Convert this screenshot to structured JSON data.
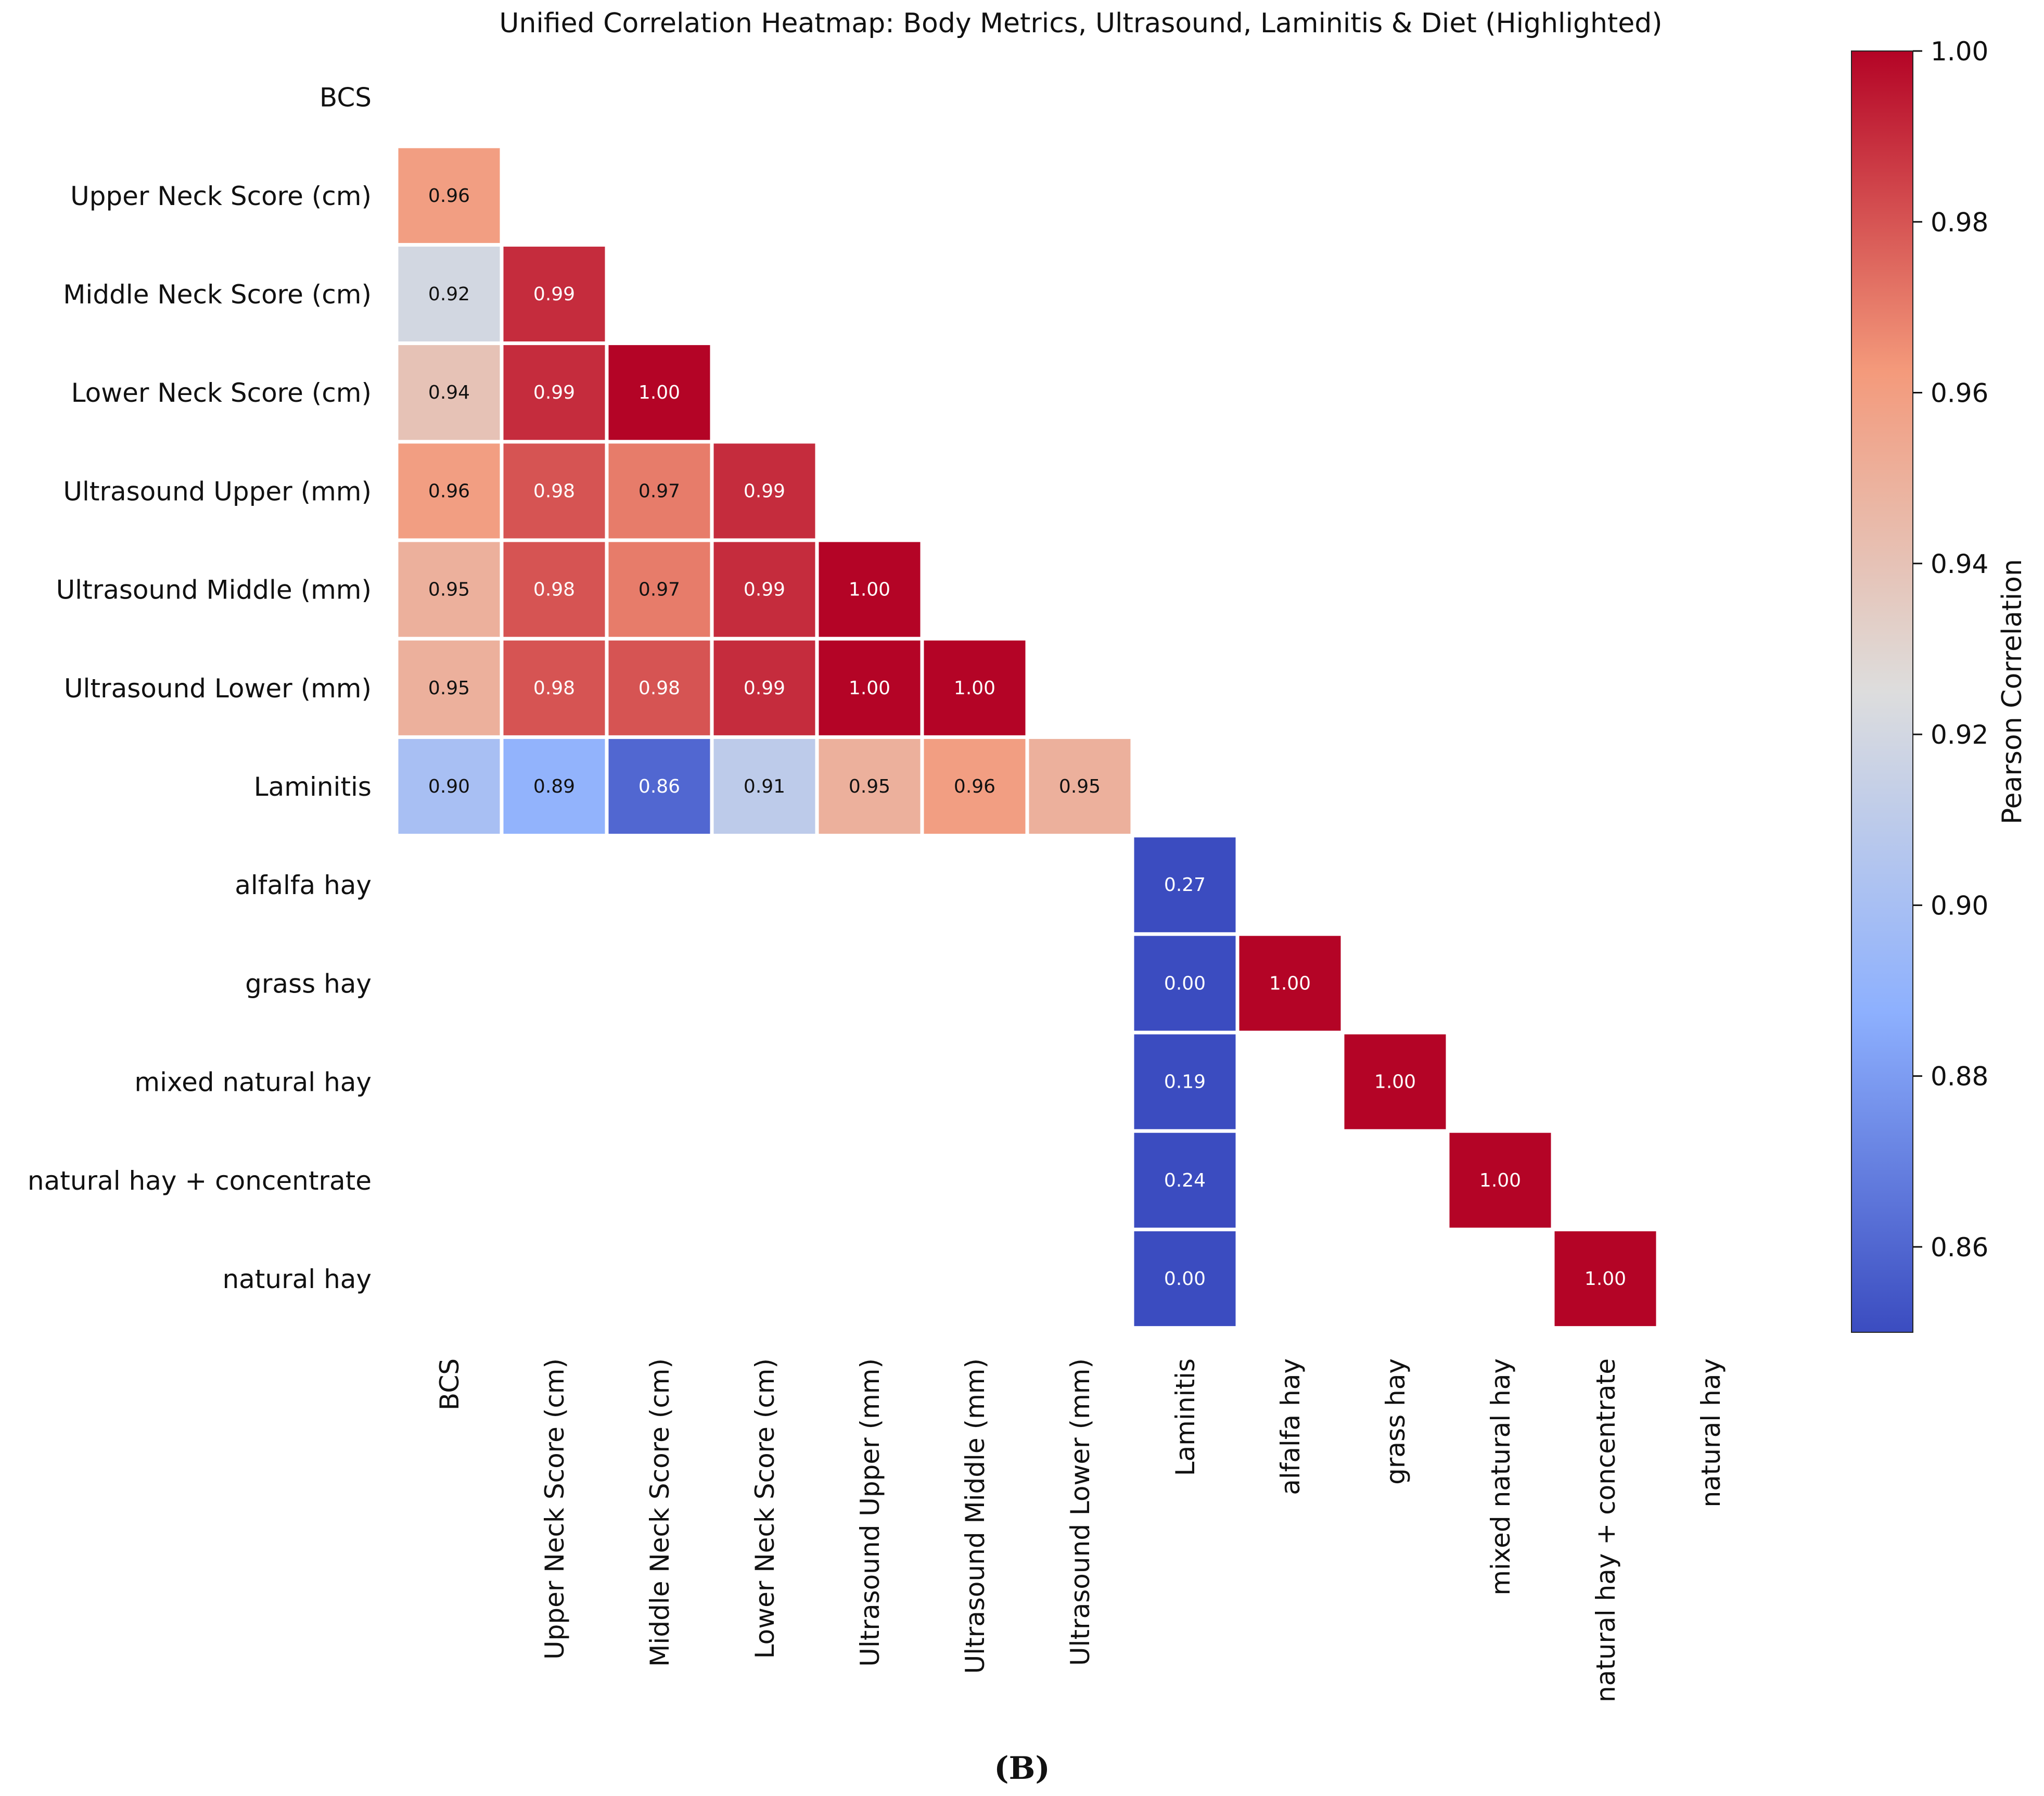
{
  "chart_data": {
    "type": "heatmap",
    "title": "Unified Correlation Heatmap: Body Metrics, Ultrasound, Laminitis & Diet (Highlighted)",
    "subcaption": "(B)",
    "labels": [
      "BCS",
      "Upper Neck Score (cm)",
      "Middle Neck Score (cm)",
      "Lower Neck Score (cm)",
      "Ultrasound Upper (mm)",
      "Ultrasound Middle (mm)",
      "Ultrasound Lower (mm)",
      "Laminitis",
      "alfalfa hay",
      "grass hay",
      "mixed natural hay",
      "natural hay + concentrate",
      "natural hay"
    ],
    "cells": [
      {
        "row": 1,
        "col": 0,
        "value": 0.96
      },
      {
        "row": 2,
        "col": 0,
        "value": 0.92
      },
      {
        "row": 2,
        "col": 1,
        "value": 0.99
      },
      {
        "row": 3,
        "col": 0,
        "value": 0.94
      },
      {
        "row": 3,
        "col": 1,
        "value": 0.99
      },
      {
        "row": 3,
        "col": 2,
        "value": 1.0
      },
      {
        "row": 4,
        "col": 0,
        "value": 0.96
      },
      {
        "row": 4,
        "col": 1,
        "value": 0.98
      },
      {
        "row": 4,
        "col": 2,
        "value": 0.97
      },
      {
        "row": 4,
        "col": 3,
        "value": 0.99
      },
      {
        "row": 5,
        "col": 0,
        "value": 0.95
      },
      {
        "row": 5,
        "col": 1,
        "value": 0.98
      },
      {
        "row": 5,
        "col": 2,
        "value": 0.97
      },
      {
        "row": 5,
        "col": 3,
        "value": 0.99
      },
      {
        "row": 5,
        "col": 4,
        "value": 1.0
      },
      {
        "row": 6,
        "col": 0,
        "value": 0.95
      },
      {
        "row": 6,
        "col": 1,
        "value": 0.98
      },
      {
        "row": 6,
        "col": 2,
        "value": 0.98
      },
      {
        "row": 6,
        "col": 3,
        "value": 0.99
      },
      {
        "row": 6,
        "col": 4,
        "value": 1.0
      },
      {
        "row": 6,
        "col": 5,
        "value": 1.0
      },
      {
        "row": 7,
        "col": 0,
        "value": 0.9
      },
      {
        "row": 7,
        "col": 1,
        "value": 0.89
      },
      {
        "row": 7,
        "col": 2,
        "value": 0.86
      },
      {
        "row": 7,
        "col": 3,
        "value": 0.91
      },
      {
        "row": 7,
        "col": 4,
        "value": 0.95
      },
      {
        "row": 7,
        "col": 5,
        "value": 0.96
      },
      {
        "row": 7,
        "col": 6,
        "value": 0.95
      },
      {
        "row": 8,
        "col": 7,
        "value": 0.27
      },
      {
        "row": 9,
        "col": 7,
        "value": 0.0
      },
      {
        "row": 9,
        "col": 8,
        "value": 1.0
      },
      {
        "row": 10,
        "col": 7,
        "value": 0.19
      },
      {
        "row": 10,
        "col": 9,
        "value": 1.0
      },
      {
        "row": 11,
        "col": 7,
        "value": 0.24
      },
      {
        "row": 11,
        "col": 10,
        "value": 1.0
      },
      {
        "row": 12,
        "col": 7,
        "value": 0.0
      },
      {
        "row": 12,
        "col": 11,
        "value": 1.0
      }
    ],
    "colorbar": {
      "label": "Pearson Correlation",
      "min": 0.85,
      "max": 1.0,
      "ticks": [
        0.86,
        0.88,
        0.9,
        0.92,
        0.94,
        0.96,
        0.98,
        1.0
      ],
      "tick_labels": [
        "0.86",
        "0.88",
        "0.90",
        "0.92",
        "0.94",
        "0.96",
        "0.98",
        "1.00"
      ],
      "colormap": "coolwarm",
      "low_color": "#3b4cc0",
      "mid_color": "#dddddd",
      "high_color": "#b40426"
    }
  }
}
